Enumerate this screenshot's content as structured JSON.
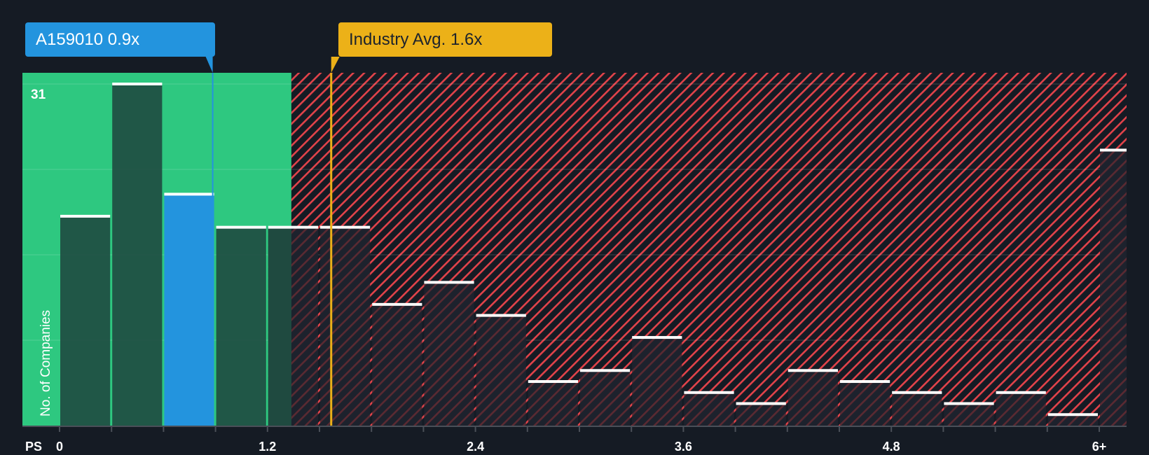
{
  "labels": {
    "company": "A159010 0.9x",
    "industry": "Industry Avg. 1.6x",
    "x_axis_prefix": "PS",
    "y_axis_title": "No. of Companies",
    "y_max": "31"
  },
  "colors": {
    "background": "#151b24",
    "undervalued_zone": "#2ec880",
    "overvalued_hatch": "#e2434a",
    "company": "#2394de",
    "industry": "#ecb118",
    "bar_in_green": "#1f4a40",
    "bar_in_red": "#1d222d",
    "bar_top": "#ffffff"
  },
  "chart_data": {
    "type": "bar",
    "title": "",
    "xlabel": "PS",
    "ylabel": "No. of Companies",
    "ylim": [
      0,
      31
    ],
    "x_tick_labels": [
      "0",
      "1.2",
      "2.4",
      "3.6",
      "4.8",
      "6+"
    ],
    "x_tick_values": [
      0,
      1.2,
      2.4,
      3.6,
      4.8,
      6.0
    ],
    "bin_width": 0.3,
    "categories": [
      "0-0.3",
      "0.3-0.6",
      "0.6-0.9",
      "0.9-1.2",
      "1.2-1.5",
      "1.5-1.8",
      "1.8-2.1",
      "2.1-2.4",
      "2.4-2.7",
      "2.7-3.0",
      "3.0-3.3",
      "3.3-3.6",
      "3.6-3.9",
      "3.9-4.2",
      "4.2-4.5",
      "4.5-4.8",
      "4.8-5.1",
      "5.1-5.4",
      "5.4-5.7",
      "5.7-6.0",
      "6+"
    ],
    "values": [
      19,
      31,
      21,
      18,
      18,
      18,
      11,
      13,
      10,
      4,
      5,
      8,
      3,
      2,
      5,
      4,
      3,
      2,
      3,
      1,
      25
    ],
    "highlight_bin_index": 2,
    "company_value": 0.9,
    "industry_avg": 1.6,
    "green_zone_max": 1.35,
    "gridlines_y": [
      0,
      7.75,
      15.5,
      23.25,
      31
    ],
    "grid": true,
    "legend": "none"
  }
}
